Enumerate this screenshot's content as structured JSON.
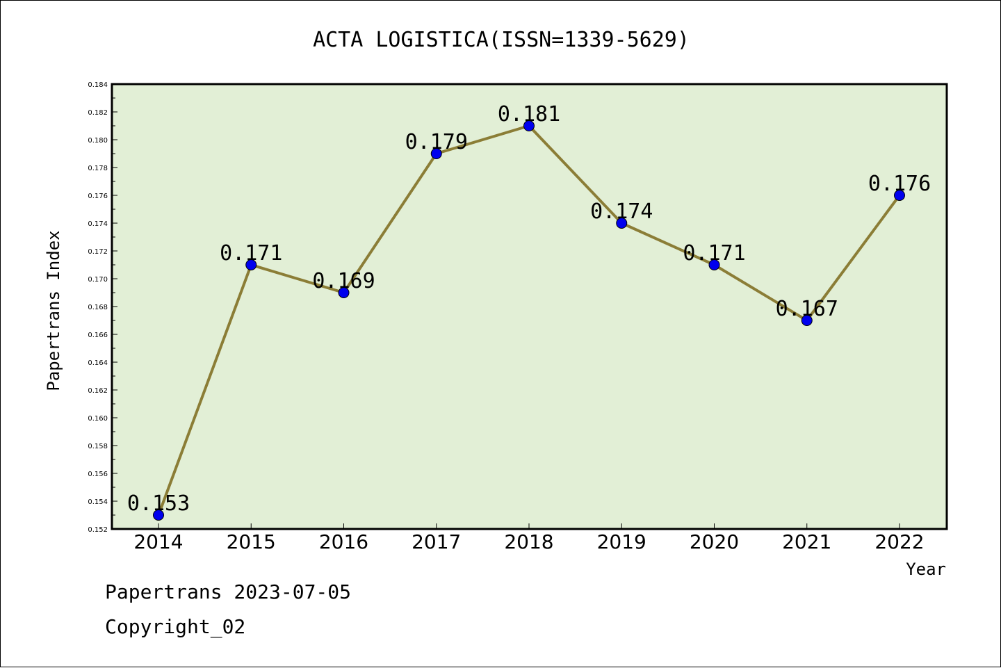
{
  "colors": {
    "plot_background": "#e2efd6",
    "line": "#8b7d36",
    "marker": "#0000ee"
  },
  "chart_data": {
    "type": "line",
    "title": "ACTA LOGISTICA(ISSN=1339-5629)",
    "xlabel": "Year",
    "ylabel": "Papertrans Index",
    "categories": [
      "2014",
      "2015",
      "2016",
      "2017",
      "2018",
      "2019",
      "2020",
      "2021",
      "2022"
    ],
    "series": [
      {
        "values": [
          0.153,
          0.171,
          0.169,
          0.179,
          0.181,
          0.174,
          0.171,
          0.167,
          0.176
        ],
        "labels": [
          "0.153",
          "0.171",
          "0.169",
          "0.179",
          "0.181",
          "0.174",
          "0.171",
          "0.167",
          "0.176"
        ]
      }
    ],
    "ylim": [
      0.152,
      0.184
    ],
    "yticks": [
      "0.152",
      "0.154",
      "0.156",
      "0.158",
      "0.160",
      "0.162",
      "0.164",
      "0.166",
      "0.168",
      "0.170",
      "0.172",
      "0.174",
      "0.176",
      "0.178",
      "0.180",
      "0.182",
      "0.184"
    ],
    "grid": false,
    "legend": "none"
  },
  "footer": {
    "line1": "Papertrans 2023-07-05",
    "line2": "Copyright_02"
  }
}
